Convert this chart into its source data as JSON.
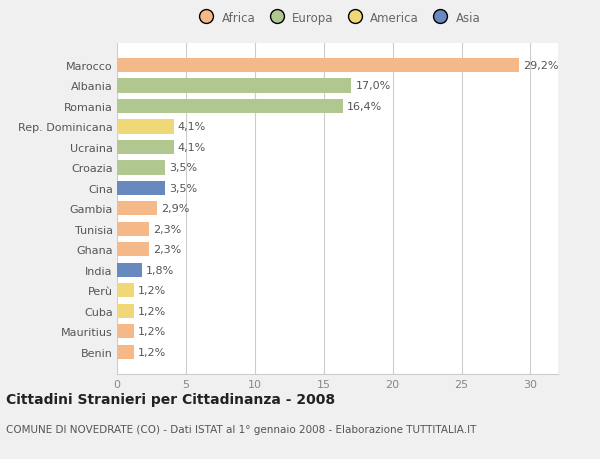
{
  "countries": [
    "Marocco",
    "Albania",
    "Romania",
    "Rep. Dominicana",
    "Ucraina",
    "Croazia",
    "Cina",
    "Gambia",
    "Tunisia",
    "Ghana",
    "India",
    "Perù",
    "Cuba",
    "Mauritius",
    "Benin"
  ],
  "values": [
    29.2,
    17.0,
    16.4,
    4.1,
    4.1,
    3.5,
    3.5,
    2.9,
    2.3,
    2.3,
    1.8,
    1.2,
    1.2,
    1.2,
    1.2
  ],
  "labels": [
    "29,2%",
    "17,0%",
    "16,4%",
    "4,1%",
    "4,1%",
    "3,5%",
    "3,5%",
    "2,9%",
    "2,3%",
    "2,3%",
    "1,8%",
    "1,2%",
    "1,2%",
    "1,2%",
    "1,2%"
  ],
  "colors": [
    "#f5b888",
    "#b0c890",
    "#b0c890",
    "#f0d878",
    "#b0c890",
    "#b0c890",
    "#6888c0",
    "#f5b888",
    "#f5b888",
    "#f5b888",
    "#6888c0",
    "#f0d878",
    "#f0d878",
    "#f5b888",
    "#f5b888"
  ],
  "legend_labels": [
    "Africa",
    "Europa",
    "America",
    "Asia"
  ],
  "legend_colors": [
    "#f5b888",
    "#b0c890",
    "#f0d878",
    "#6888c0"
  ],
  "title": "Cittadini Stranieri per Cittadinanza - 2008",
  "subtitle": "COMUNE DI NOVEDRATE (CO) - Dati ISTAT al 1° gennaio 2008 - Elaborazione TUTTITALIA.IT",
  "xlim": [
    0,
    32
  ],
  "xticks": [
    0,
    5,
    10,
    15,
    20,
    25,
    30
  ],
  "bg_color": "#f0f0f0",
  "plot_bg_color": "#ffffff",
  "bar_height": 0.7,
  "label_fontsize": 8,
  "tick_fontsize": 8,
  "title_fontsize": 10,
  "subtitle_fontsize": 7.5
}
